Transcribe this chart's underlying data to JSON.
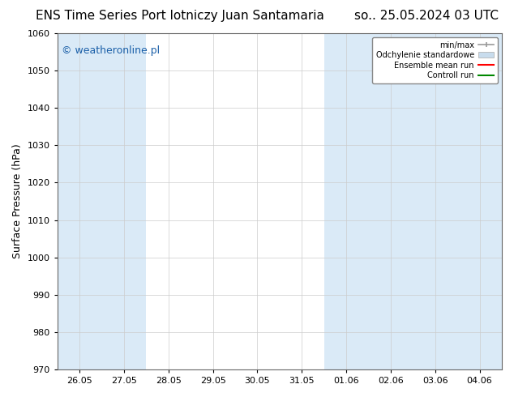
{
  "title_left": "ENS Time Series Port lotniczy Juan Santamaria",
  "title_right": "so.. 25.05.2024 03 UTC",
  "ylabel": "Surface Pressure (hPa)",
  "watermark": "© weatheronline.pl",
  "ylim": [
    970,
    1060
  ],
  "yticks": [
    970,
    980,
    990,
    1000,
    1010,
    1020,
    1030,
    1040,
    1050,
    1060
  ],
  "x_labels": [
    "26.05",
    "27.05",
    "28.05",
    "29.05",
    "30.05",
    "31.05",
    "01.06",
    "02.06",
    "03.06",
    "04.06"
  ],
  "shaded_color": "#daeaf7",
  "bg_color": "#ffffff",
  "plot_bg_color": "#ffffff",
  "legend_labels": [
    "min/max",
    "Odchylenie standardowe",
    "Ensemble mean run",
    "Controll run"
  ],
  "legend_colors": [
    "#aaaaaa",
    "#c8dced",
    "#ff0000",
    "#008800"
  ],
  "title_fontsize": 11,
  "axis_fontsize": 9,
  "tick_fontsize": 8,
  "watermark_fontsize": 9,
  "watermark_color": "#1a5fa8"
}
